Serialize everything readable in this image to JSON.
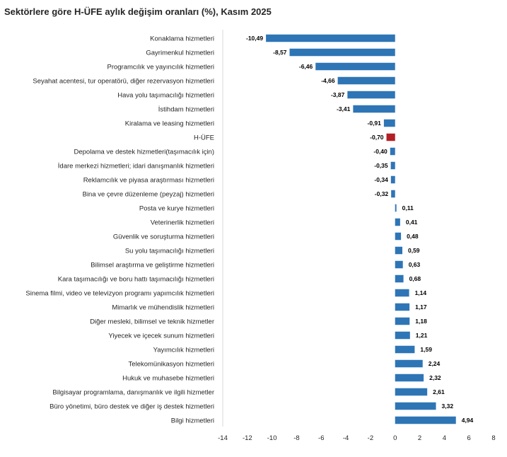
{
  "chart_data": {
    "type": "bar",
    "orientation": "horizontal",
    "title": "Sektörlere göre H-ÜFE aylık değişim oranları (%), Kasım 2025",
    "xlabel": "",
    "ylabel": "",
    "xlim": [
      -14,
      8
    ],
    "xticks": [
      -14,
      -12,
      -10,
      -8,
      -6,
      -4,
      -2,
      0,
      2,
      4,
      6,
      8
    ],
    "grid": false,
    "legend": "none",
    "colors": {
      "default": "#2e75b6",
      "highlight": "#b21f24",
      "axis": "#d9d9d9"
    },
    "highlight_category": "H-ÜFE",
    "categories": [
      "Konaklama hizmetleri",
      "Gayrimenkul hizmetleri",
      "Programcılık ve yayıncılık hizmetleri",
      "Seyahat acentesi, tur operatörü, diğer rezervasyon hizmetleri",
      "Hava yolu taşımacılığı hizmetleri",
      "İstihdam hizmetleri",
      "Kiralama ve leasing hizmetleri",
      "H-ÜFE",
      "Depolama ve destek hizmetleri(taşımacılık için)",
      "İdare merkezi hizmetleri; idari danışmanlık hizmetleri",
      "Reklamcılık ve piyasa araştırması hizmetleri",
      "Bina ve çevre düzenleme (peyzaj) hizmetleri",
      "Posta ve kurye hizmetleri",
      "Veterinerlik hizmetleri",
      "Güvenlik ve soruşturma hizmetleri",
      "Su yolu taşımacılığı hizmetleri",
      "Bilimsel araştırma ve geliştirme hizmetleri",
      "Kara taşımacılığı ve boru hattı taşımacılığı hizmetleri",
      "Sinema filmi, video ve televizyon programı yapımcılık hizmetleri",
      "Mimarlık ve mühendislik hizmetleri",
      "Diğer mesleki, bilimsel ve teknik hizmetler",
      "Yiyecek ve içecek sunum hizmetleri",
      "Yayımcılık hizmetleri",
      "Telekomünikasyon hizmetleri",
      "Hukuk ve muhasebe hizmetleri",
      "Bilgisayar programlama, danışmanlık ve ilgili hizmetler",
      "Büro yönetimi, büro destek ve diğer iş destek hizmetleri",
      "Bilgi hizmetleri"
    ],
    "values": [
      -10.49,
      -8.57,
      -6.46,
      -4.66,
      -3.87,
      -3.41,
      -0.91,
      -0.7,
      -0.4,
      -0.35,
      -0.34,
      -0.32,
      0.11,
      0.41,
      0.48,
      0.59,
      0.63,
      0.68,
      1.14,
      1.17,
      1.18,
      1.21,
      1.59,
      2.24,
      2.32,
      2.61,
      3.32,
      4.94
    ],
    "value_labels": [
      "-10,49",
      "-8,57",
      "-6,46",
      "-4,66",
      "-3,87",
      "-3,41",
      "-0,91",
      "-0,70",
      "-0,40",
      "-0,35",
      "-0,34",
      "-0,32",
      "0,11",
      "0,41",
      "0,48",
      "0,59",
      "0,63",
      "0,68",
      "1,14",
      "1,17",
      "1,18",
      "1,21",
      "1,59",
      "2,24",
      "2,32",
      "2,61",
      "3,32",
      "4,94"
    ]
  }
}
